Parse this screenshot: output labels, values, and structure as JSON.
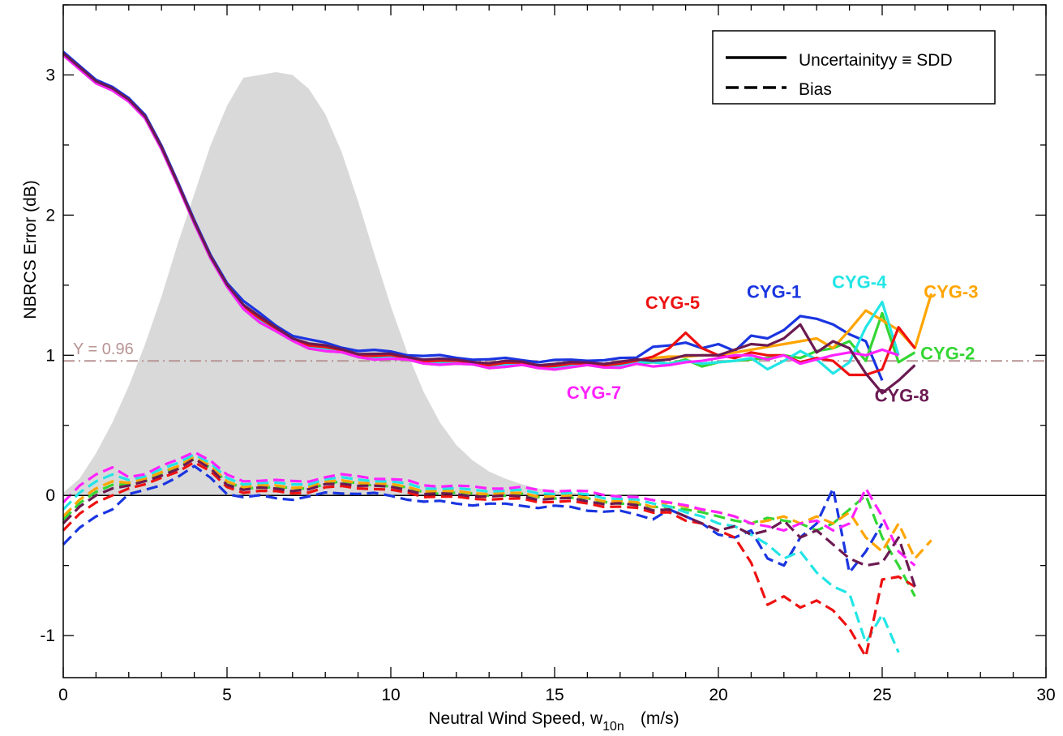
{
  "chart_data": {
    "type": "line",
    "xlabel_main": "Neutral Wind Speed, w",
    "xlabel_sub": "10n",
    "xlabel_unit": "(m/s)",
    "ylabel": "NBRCS Error    (dB)",
    "xlim": [
      0,
      30
    ],
    "ylim": [
      -1.3,
      3.5
    ],
    "xticks": [
      0,
      5,
      10,
      15,
      20,
      25,
      30
    ],
    "yticks": [
      -1,
      0,
      1,
      2,
      3
    ],
    "grid": false,
    "legend_position": "top-right",
    "legend": [
      {
        "label": "Uncertainityy ≡ SDD",
        "style": "solid"
      },
      {
        "label": "Bias",
        "style": "dashed"
      }
    ],
    "reference_line": {
      "y": 0.96,
      "label": "Y = 0.96",
      "color": "#b89494"
    },
    "zero_line": {
      "y": 0
    },
    "histogram": {
      "color": "#d9d9d9",
      "x": [
        0,
        0.5,
        1,
        1.5,
        2,
        2.5,
        3,
        3.5,
        4,
        4.5,
        5,
        5.5,
        6,
        6.5,
        7,
        7.5,
        8,
        8.5,
        9,
        9.5,
        10,
        10.5,
        11,
        11.5,
        12,
        12.5,
        13,
        13.5,
        14,
        14.5,
        15,
        15.5,
        16,
        16.5,
        17,
        17.5,
        18
      ],
      "y": [
        0.02,
        0.12,
        0.3,
        0.52,
        0.78,
        1.08,
        1.42,
        1.8,
        2.15,
        2.5,
        2.78,
        2.98,
        3.0,
        3.02,
        3.0,
        2.9,
        2.72,
        2.45,
        2.1,
        1.72,
        1.35,
        1.02,
        0.74,
        0.52,
        0.36,
        0.25,
        0.17,
        0.12,
        0.08,
        0.05,
        0.03,
        0.02,
        0.01,
        0.01,
        0.0,
        0.0,
        0.0
      ]
    },
    "series_common_sdd": {
      "x": [
        0,
        0.5,
        1,
        1.5,
        2,
        2.5,
        3,
        3.5,
        4,
        4.5,
        5,
        5.5,
        6,
        6.5,
        7,
        7.5,
        8,
        8.5,
        9,
        9.5,
        10,
        10.5,
        11,
        11.5,
        12,
        12.5,
        13,
        13.5,
        14,
        14.5,
        15,
        15.5,
        16,
        16.5,
        17,
        17.5
      ],
      "y": [
        3.15,
        3.05,
        2.95,
        2.9,
        2.82,
        2.7,
        2.48,
        2.22,
        1.95,
        1.7,
        1.5,
        1.36,
        1.26,
        1.18,
        1.12,
        1.08,
        1.05,
        1.03,
        1.01,
        1.0,
        0.99,
        0.98,
        0.97,
        0.96,
        0.95,
        0.95,
        0.94,
        0.94,
        0.94,
        0.93,
        0.93,
        0.93,
        0.94,
        0.94,
        0.94,
        0.95
      ]
    },
    "series_common_bias": {
      "x": [
        0,
        0.5,
        1,
        1.5,
        2,
        2.5,
        3,
        3.5,
        4,
        4.5,
        5,
        5.5,
        6,
        6.5,
        7,
        7.5,
        8,
        8.5,
        9,
        9.5,
        10,
        10.5,
        11,
        11.5,
        12,
        12.5,
        13,
        13.5,
        14,
        14.5,
        15,
        15.5,
        16,
        16.5,
        17,
        17.5,
        18
      ],
      "y": [
        -0.2,
        -0.08,
        0.0,
        0.05,
        0.07,
        0.09,
        0.14,
        0.2,
        0.26,
        0.18,
        0.08,
        0.05,
        0.05,
        0.04,
        0.04,
        0.05,
        0.07,
        0.08,
        0.08,
        0.07,
        0.05,
        0.04,
        0.02,
        0.01,
        0.0,
        0.0,
        0.0,
        -0.01,
        -0.01,
        -0.02,
        -0.02,
        -0.03,
        -0.04,
        -0.05,
        -0.06,
        -0.08,
        -0.1
      ]
    },
    "series": [
      {
        "name": "CYG-1",
        "color": "#1a35e0",
        "sdd_offset": 0.03,
        "sdd_tail_x": [
          18,
          18.5,
          19,
          19.5,
          20,
          20.5,
          21,
          21.5,
          22,
          22.5,
          23,
          23.5,
          24,
          24.5,
          25
        ],
        "sdd_tail_y": [
          1.06,
          1.07,
          1.09,
          1.05,
          1.08,
          1.03,
          1.14,
          1.12,
          1.18,
          1.28,
          1.26,
          1.22,
          1.15,
          1.1,
          0.82
        ],
        "bias_offset": -0.06,
        "bias_tail_x": [
          18.5,
          19,
          19.5,
          20,
          20.5,
          21,
          21.5,
          22,
          22.5,
          23,
          23.5,
          24,
          24.5,
          25
        ],
        "bias_tail_y": [
          -0.1,
          -0.15,
          -0.2,
          -0.28,
          -0.3,
          -0.25,
          -0.45,
          -0.5,
          -0.3,
          -0.2,
          0.05,
          -0.55,
          -0.4,
          -0.2
        ]
      },
      {
        "name": "CYG-2",
        "color": "#33d633",
        "sdd_offset": -0.02,
        "sdd_tail_x": [
          18,
          18.5,
          19,
          19.5,
          20,
          20.5,
          21,
          21.5,
          22,
          22.5,
          23,
          23.5,
          24,
          24.5,
          25,
          25.5,
          26
        ],
        "sdd_tail_y": [
          0.95,
          0.94,
          0.97,
          0.92,
          0.95,
          0.96,
          0.97,
          0.98,
          1.0,
          0.98,
          1.03,
          1.05,
          1.1,
          0.96,
          1.3,
          0.95,
          1.02
        ],
        "bias_offset": 0.01,
        "bias_tail_x": [
          18.5,
          19,
          19.5,
          20,
          20.5,
          21,
          21.5,
          22,
          22.5,
          23,
          23.5,
          24,
          24.5,
          25,
          25.5,
          26
        ],
        "bias_tail_y": [
          -0.08,
          -0.1,
          -0.12,
          -0.15,
          -0.18,
          -0.2,
          -0.16,
          -0.18,
          -0.2,
          -0.25,
          -0.2,
          -0.1,
          0.0,
          -0.3,
          -0.5,
          -0.72
        ]
      },
      {
        "name": "CYG-3",
        "color": "#ffa500",
        "sdd_offset": 0.0,
        "sdd_tail_x": [
          18,
          18.5,
          19,
          19.5,
          20,
          20.5,
          21,
          21.5,
          22,
          22.5,
          23,
          23.5,
          24,
          24.5,
          25,
          25.5,
          26,
          26.5
        ],
        "sdd_tail_y": [
          0.98,
          0.99,
          0.99,
          1.0,
          1.0,
          1.02,
          1.04,
          1.06,
          1.08,
          1.1,
          1.12,
          1.05,
          1.18,
          1.32,
          1.25,
          1.18,
          1.05,
          1.44
        ],
        "bias_offset": 0.02,
        "bias_tail_x": [
          18.5,
          19,
          19.5,
          20,
          20.5,
          21,
          21.5,
          22,
          22.5,
          23,
          23.5,
          24,
          24.5,
          25,
          25.5,
          26,
          26.5
        ],
        "bias_tail_y": [
          -0.05,
          -0.08,
          -0.1,
          -0.12,
          -0.15,
          -0.2,
          -0.18,
          -0.15,
          -0.2,
          -0.15,
          -0.2,
          -0.12,
          -0.3,
          -0.4,
          -0.2,
          -0.45,
          -0.32
        ]
      },
      {
        "name": "CYG-4",
        "color": "#22e5e5",
        "sdd_offset": -0.01,
        "sdd_tail_x": [
          18,
          18.5,
          19,
          19.5,
          20,
          20.5,
          21,
          21.5,
          22,
          22.5,
          23,
          23.5,
          24,
          24.5,
          25,
          25.5
        ],
        "sdd_tail_y": [
          0.95,
          0.94,
          0.96,
          0.94,
          0.95,
          0.96,
          0.98,
          0.9,
          0.96,
          1.03,
          0.97,
          0.87,
          0.95,
          1.2,
          1.38,
          1.0
        ],
        "bias_offset": 0.04,
        "bias_tail_x": [
          18.5,
          19,
          19.5,
          20,
          20.5,
          21,
          21.5,
          22,
          22.5,
          23,
          23.5,
          24,
          24.5,
          25,
          25.5
        ],
        "bias_tail_y": [
          -0.08,
          -0.12,
          -0.15,
          -0.2,
          -0.22,
          -0.28,
          -0.35,
          -0.45,
          -0.4,
          -0.55,
          -0.65,
          -0.7,
          -1.05,
          -0.85,
          -1.12
        ]
      },
      {
        "name": "CYG-5",
        "color": "#ee1111",
        "sdd_offset": 0.0,
        "sdd_tail_x": [
          18,
          18.5,
          19,
          19.5,
          20,
          20.5,
          21,
          21.5,
          22,
          22.5,
          23,
          23.5,
          24,
          24.5,
          25,
          25.5,
          26
        ],
        "sdd_tail_y": [
          0.99,
          1.05,
          1.16,
          1.05,
          1.0,
          0.98,
          1.02,
          1.0,
          1.0,
          0.95,
          0.98,
          0.96,
          0.86,
          0.86,
          0.9,
          1.2,
          1.05
        ],
        "bias_offset": -0.02,
        "bias_tail_x": [
          18.5,
          19,
          19.5,
          20,
          20.5,
          21,
          21.5,
          22,
          22.5,
          23,
          23.5,
          24,
          24.5,
          25,
          25.5,
          26
        ],
        "bias_tail_y": [
          -0.12,
          -0.18,
          -0.2,
          -0.25,
          -0.3,
          -0.48,
          -0.78,
          -0.72,
          -0.8,
          -0.75,
          -0.82,
          -0.95,
          -1.15,
          -0.6,
          -0.58,
          -0.65
        ]
      },
      {
        "name": "CYG-7",
        "color": "#ff22ff",
        "sdd_offset": -0.02,
        "sdd_tail_x": [
          18,
          18.5,
          19,
          19.5,
          20,
          20.5,
          21,
          21.5,
          22,
          22.5,
          23,
          23.5,
          24,
          24.5,
          25,
          25.5
        ],
        "sdd_tail_y": [
          0.92,
          0.93,
          0.95,
          0.96,
          0.98,
          1.0,
          1.0,
          0.97,
          1.0,
          0.94,
          0.97,
          1.0,
          1.02,
          1.0,
          1.04,
          1.0
        ],
        "bias_offset": 0.06,
        "bias_tail_x": [
          18.5,
          19,
          19.5,
          20,
          20.5,
          21,
          21.5,
          22,
          22.5,
          23,
          23.5,
          24,
          24.5,
          25,
          25.5,
          26
        ],
        "bias_tail_y": [
          -0.05,
          -0.07,
          -0.1,
          -0.12,
          -0.15,
          -0.2,
          -0.22,
          -0.25,
          -0.2,
          -0.18,
          -0.25,
          -0.2,
          0.05,
          -0.15,
          -0.4,
          -0.5
        ]
      },
      {
        "name": "CYG-8",
        "color": "#6b1a52",
        "sdd_offset": 0.01,
        "sdd_tail_x": [
          18,
          18.5,
          19,
          19.5,
          20,
          20.5,
          21,
          21.5,
          22,
          22.5,
          23,
          23.5,
          24,
          24.5,
          25,
          25.5,
          26
        ],
        "sdd_tail_y": [
          0.96,
          0.97,
          1.0,
          1.0,
          1.0,
          1.04,
          1.08,
          1.07,
          1.12,
          1.22,
          1.02,
          1.1,
          1.05,
          0.87,
          0.73,
          0.82,
          0.93
        ],
        "bias_offset": 0.0,
        "bias_tail_x": [
          18.5,
          19,
          19.5,
          20,
          20.5,
          21,
          21.5,
          22,
          22.5,
          23,
          23.5,
          24,
          24.5,
          25,
          25.5,
          26
        ],
        "bias_tail_y": [
          -0.1,
          -0.15,
          -0.2,
          -0.25,
          -0.22,
          -0.28,
          -0.25,
          -0.18,
          -0.3,
          -0.25,
          -0.35,
          -0.45,
          -0.5,
          -0.48,
          -0.3,
          -0.65
        ]
      }
    ],
    "series_labels": [
      {
        "text": "CYG-5",
        "color": "#ee1111",
        "x": 18.6,
        "y": 1.33
      },
      {
        "text": "CYG-1",
        "color": "#1a35e0",
        "x": 21.7,
        "y": 1.41
      },
      {
        "text": "CYG-4",
        "color": "#22e5e5",
        "x": 24.3,
        "y": 1.48
      },
      {
        "text": "CYG-3",
        "color": "#ffa500",
        "x": 27.1,
        "y": 1.41
      },
      {
        "text": "CYG-2",
        "color": "#33d633",
        "x": 27.0,
        "y": 0.97
      },
      {
        "text": "CYG-7",
        "color": "#ff22ff",
        "x": 16.2,
        "y": 0.69
      },
      {
        "text": "CYG-8",
        "color": "#6b1a52",
        "x": 25.6,
        "y": 0.67
      }
    ]
  }
}
